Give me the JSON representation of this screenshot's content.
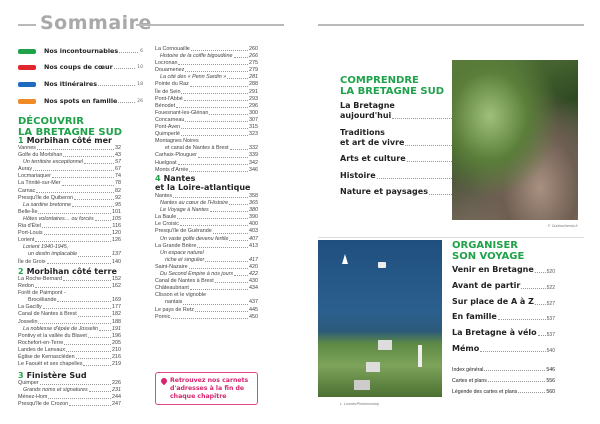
{
  "left_page": {
    "title": "Sommaire",
    "legend": [
      {
        "label": "Nos incontournables",
        "page": "6",
        "color": "#1fa24a"
      },
      {
        "label": "Nos coups de cœur",
        "page": "10",
        "color": "#e3262e"
      },
      {
        "label": "Nos itinéraires",
        "page": "18",
        "color": "#1e6bc0"
      },
      {
        "label": "Nos spots en famille",
        "page": "26",
        "color": "#f08a24"
      }
    ],
    "section_title_1": "DÉCOUVRIR",
    "section_title_2": "LA BRETAGNE SUD",
    "chapters": [
      {
        "num": "1",
        "title": "Morbihan côté mer",
        "entries": [
          {
            "t": "Vannes",
            "p": "32"
          },
          {
            "t": "Golfe du Morbihan",
            "p": "43"
          },
          {
            "t": "Un territoire exceptionnel",
            "p": "57",
            "it": true
          },
          {
            "t": "Auray",
            "p": "67"
          },
          {
            "t": "Locmariaquer",
            "p": "74"
          },
          {
            "t": "La Trinité-sur-Mer",
            "p": "78"
          },
          {
            "t": "Carnac",
            "p": "82"
          },
          {
            "t": "Presqu'île de Quiberon",
            "p": "92"
          },
          {
            "t": "La sardine bretonne",
            "p": "95",
            "it": true
          },
          {
            "t": "Belle-Île",
            "p": "101"
          },
          {
            "t": "Hôtes volontaires… ou forcés",
            "p": "105",
            "it": true
          },
          {
            "t": "Ria d'Étel",
            "p": "116"
          },
          {
            "t": "Port-Louis",
            "p": "120"
          },
          {
            "t": "Lorient",
            "p": "126"
          },
          {
            "t": "Lorient 1940-1945,",
            "p": "",
            "it": true
          },
          {
            "t": "un destin implacable",
            "p": "137",
            "it": true,
            "ind": true
          },
          {
            "t": "Île de Groix",
            "p": "140"
          }
        ]
      },
      {
        "num": "2",
        "title": "Morbihan côté terre",
        "entries": [
          {
            "t": "La Roche-Bernard",
            "p": "152"
          },
          {
            "t": "Redon",
            "p": "162"
          },
          {
            "t": "Forêt de Paimpont -",
            "p": ""
          },
          {
            "t": "Brocéliande",
            "p": "169",
            "ind": true
          },
          {
            "t": "La Gacilly",
            "p": "177"
          },
          {
            "t": "Canal de Nantes à Brest",
            "p": "182"
          },
          {
            "t": "Josselin",
            "p": "188"
          },
          {
            "t": "La noblesse d'épée de Josselin",
            "p": "191",
            "it": true
          },
          {
            "t": "Pontivy et la vallée du Blavet",
            "p": "196"
          },
          {
            "t": "Rochefort-en-Terre",
            "p": "205"
          },
          {
            "t": "Landes de Lanvaux",
            "p": "210"
          },
          {
            "t": "Église de Kernascléden",
            "p": "216"
          },
          {
            "t": "Le Faouët et ses chapelles",
            "p": "219"
          }
        ]
      },
      {
        "num": "3",
        "title": "Finistère Sud",
        "entries": [
          {
            "t": "Quimper",
            "p": "226"
          },
          {
            "t": "Grands noms et signatures",
            "p": "231",
            "it": true
          },
          {
            "t": "Ménez-Hom",
            "p": "244"
          },
          {
            "t": "Presqu'île de Crozon",
            "p": "247"
          }
        ]
      }
    ]
  },
  "middle_column": {
    "entries_a": [
      {
        "t": "La Cornouaille",
        "p": "260"
      },
      {
        "t": "Histoire de la coiffe bigoudène",
        "p": "266",
        "it": true
      },
      {
        "t": "Locronan",
        "p": "275"
      },
      {
        "t": "Douarnenez",
        "p": "279"
      },
      {
        "t": "La cité des « Penn Sardin »",
        "p": "281",
        "it": true
      },
      {
        "t": "Pointe du Raz",
        "p": "288"
      },
      {
        "t": "Île de Sein",
        "p": "291"
      },
      {
        "t": "Pont-l'Abbé",
        "p": "293"
      },
      {
        "t": "Bénodet",
        "p": "296"
      },
      {
        "t": "Fouesnant-les-Glénan",
        "p": "300"
      },
      {
        "t": "Concarneau",
        "p": "307"
      },
      {
        "t": "Pont-Aven",
        "p": "315"
      },
      {
        "t": "Quimperlé",
        "p": "323"
      },
      {
        "t": "Montagnes Noires",
        "p": ""
      },
      {
        "t": "et canal de Nantes à Brest",
        "p": "332",
        "ind": true
      },
      {
        "t": "Carhaix-Plouguer",
        "p": "339"
      },
      {
        "t": "Huelgoat",
        "p": "342"
      },
      {
        "t": "Monts d'Arrée",
        "p": "346"
      }
    ],
    "chapter4_num": "4",
    "chapter4_title_1": "Nantes",
    "chapter4_title_2": "et la Loire-atlantique",
    "entries_b": [
      {
        "t": "Nantes",
        "p": "358"
      },
      {
        "t": "Nantes au cœur de l'Histoire",
        "p": "365",
        "it": true
      },
      {
        "t": "Le Voyage à Nantes",
        "p": "380",
        "it": true
      },
      {
        "t": "La Baule",
        "p": "390"
      },
      {
        "t": "Le Croisic",
        "p": "400"
      },
      {
        "t": "Presqu'île de Guérande",
        "p": "403"
      },
      {
        "t": "Un vaste golfe devenu fertile",
        "p": "407",
        "it": true
      },
      {
        "t": "La Grande Brière",
        "p": "413"
      },
      {
        "t": "Un espace naturel",
        "p": "",
        "it": true
      },
      {
        "t": "riche et singulier",
        "p": "417",
        "it": true,
        "ind": true
      },
      {
        "t": "Saint-Nazaire",
        "p": "420"
      },
      {
        "t": "Du Second Empire à nos jours",
        "p": "422",
        "it": true
      },
      {
        "t": "Canal de Nantes à Brest",
        "p": "430"
      },
      {
        "t": "Châteaubriant",
        "p": "434"
      },
      {
        "t": "Clisson et le vignoble",
        "p": ""
      },
      {
        "t": "nantais",
        "p": "437",
        "ind": true
      },
      {
        "t": "Le pays de Retz",
        "p": "445"
      },
      {
        "t": "Pornic",
        "p": "450"
      }
    ],
    "callout": "Retrouvez nos carnets d'adresses à la fin de chaque chapitre"
  },
  "right_page": {
    "comprendre_1": "COMPRENDRE",
    "comprendre_2": "LA BRETAGNE SUD",
    "comprendre_entries": [
      {
        "t1": "La Bretagne",
        "t": "aujourd'hui",
        "p": "458"
      },
      {
        "t1": "Traditions",
        "t": "et art de vivre",
        "p": "465"
      },
      {
        "t": "Arts et culture",
        "p": "477"
      },
      {
        "t": "Histoire",
        "p": "498"
      },
      {
        "t": "Nature et paysages",
        "p": "505"
      }
    ],
    "photo1_credit": "F. Guiziou/hemis.fr",
    "photo2_credit": "L. Lounds/Photononstop",
    "organiser_1": "ORGANISER",
    "organiser_2": "SON VOYAGE",
    "organiser_entries": [
      {
        "t": "Venir en Bretagne",
        "p": "520"
      },
      {
        "t": "Avant de partir",
        "p": "522"
      },
      {
        "t": "Sur place de A à Z",
        "p": "527"
      },
      {
        "t": "En famille",
        "p": "537"
      },
      {
        "t": "La Bretagne à vélo",
        "p": "537"
      },
      {
        "t": "Mémo",
        "p": "540"
      }
    ],
    "index_entries": [
      {
        "t": "Index général",
        "p": "546"
      },
      {
        "t": "Cartes et plans",
        "p": "556"
      },
      {
        "t": "Légende des cartes et plans",
        "p": "560"
      }
    ]
  }
}
